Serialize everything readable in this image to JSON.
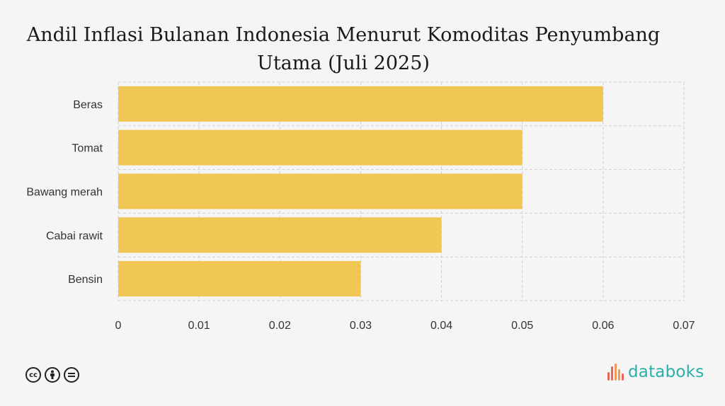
{
  "chart_data": {
    "type": "bar",
    "orientation": "horizontal",
    "title_line1": "Andil Inflasi Bulanan Indonesia Menurut Komoditas Penyumbang",
    "title_line2": "Utama (Juli 2025)",
    "categories": [
      "Beras",
      "Tomat",
      "Bawang merah",
      "Cabai rawit",
      "Bensin"
    ],
    "values": [
      0.06,
      0.05,
      0.05,
      0.04,
      0.03
    ],
    "xlim": [
      0,
      0.07
    ],
    "xticks": [
      0,
      0.01,
      0.02,
      0.03,
      0.04,
      0.05,
      0.06,
      0.07
    ],
    "xtick_labels": [
      "0",
      "0.01",
      "0.02",
      "0.03",
      "0.04",
      "0.05",
      "0.06",
      "0.07"
    ],
    "grid": true,
    "bar_color": "#f0c754"
  },
  "footer": {
    "license_icons": [
      "cc-icon",
      "by-icon",
      "nd-icon"
    ],
    "brand": "databoks",
    "brand_color": "#2ab0a9"
  }
}
